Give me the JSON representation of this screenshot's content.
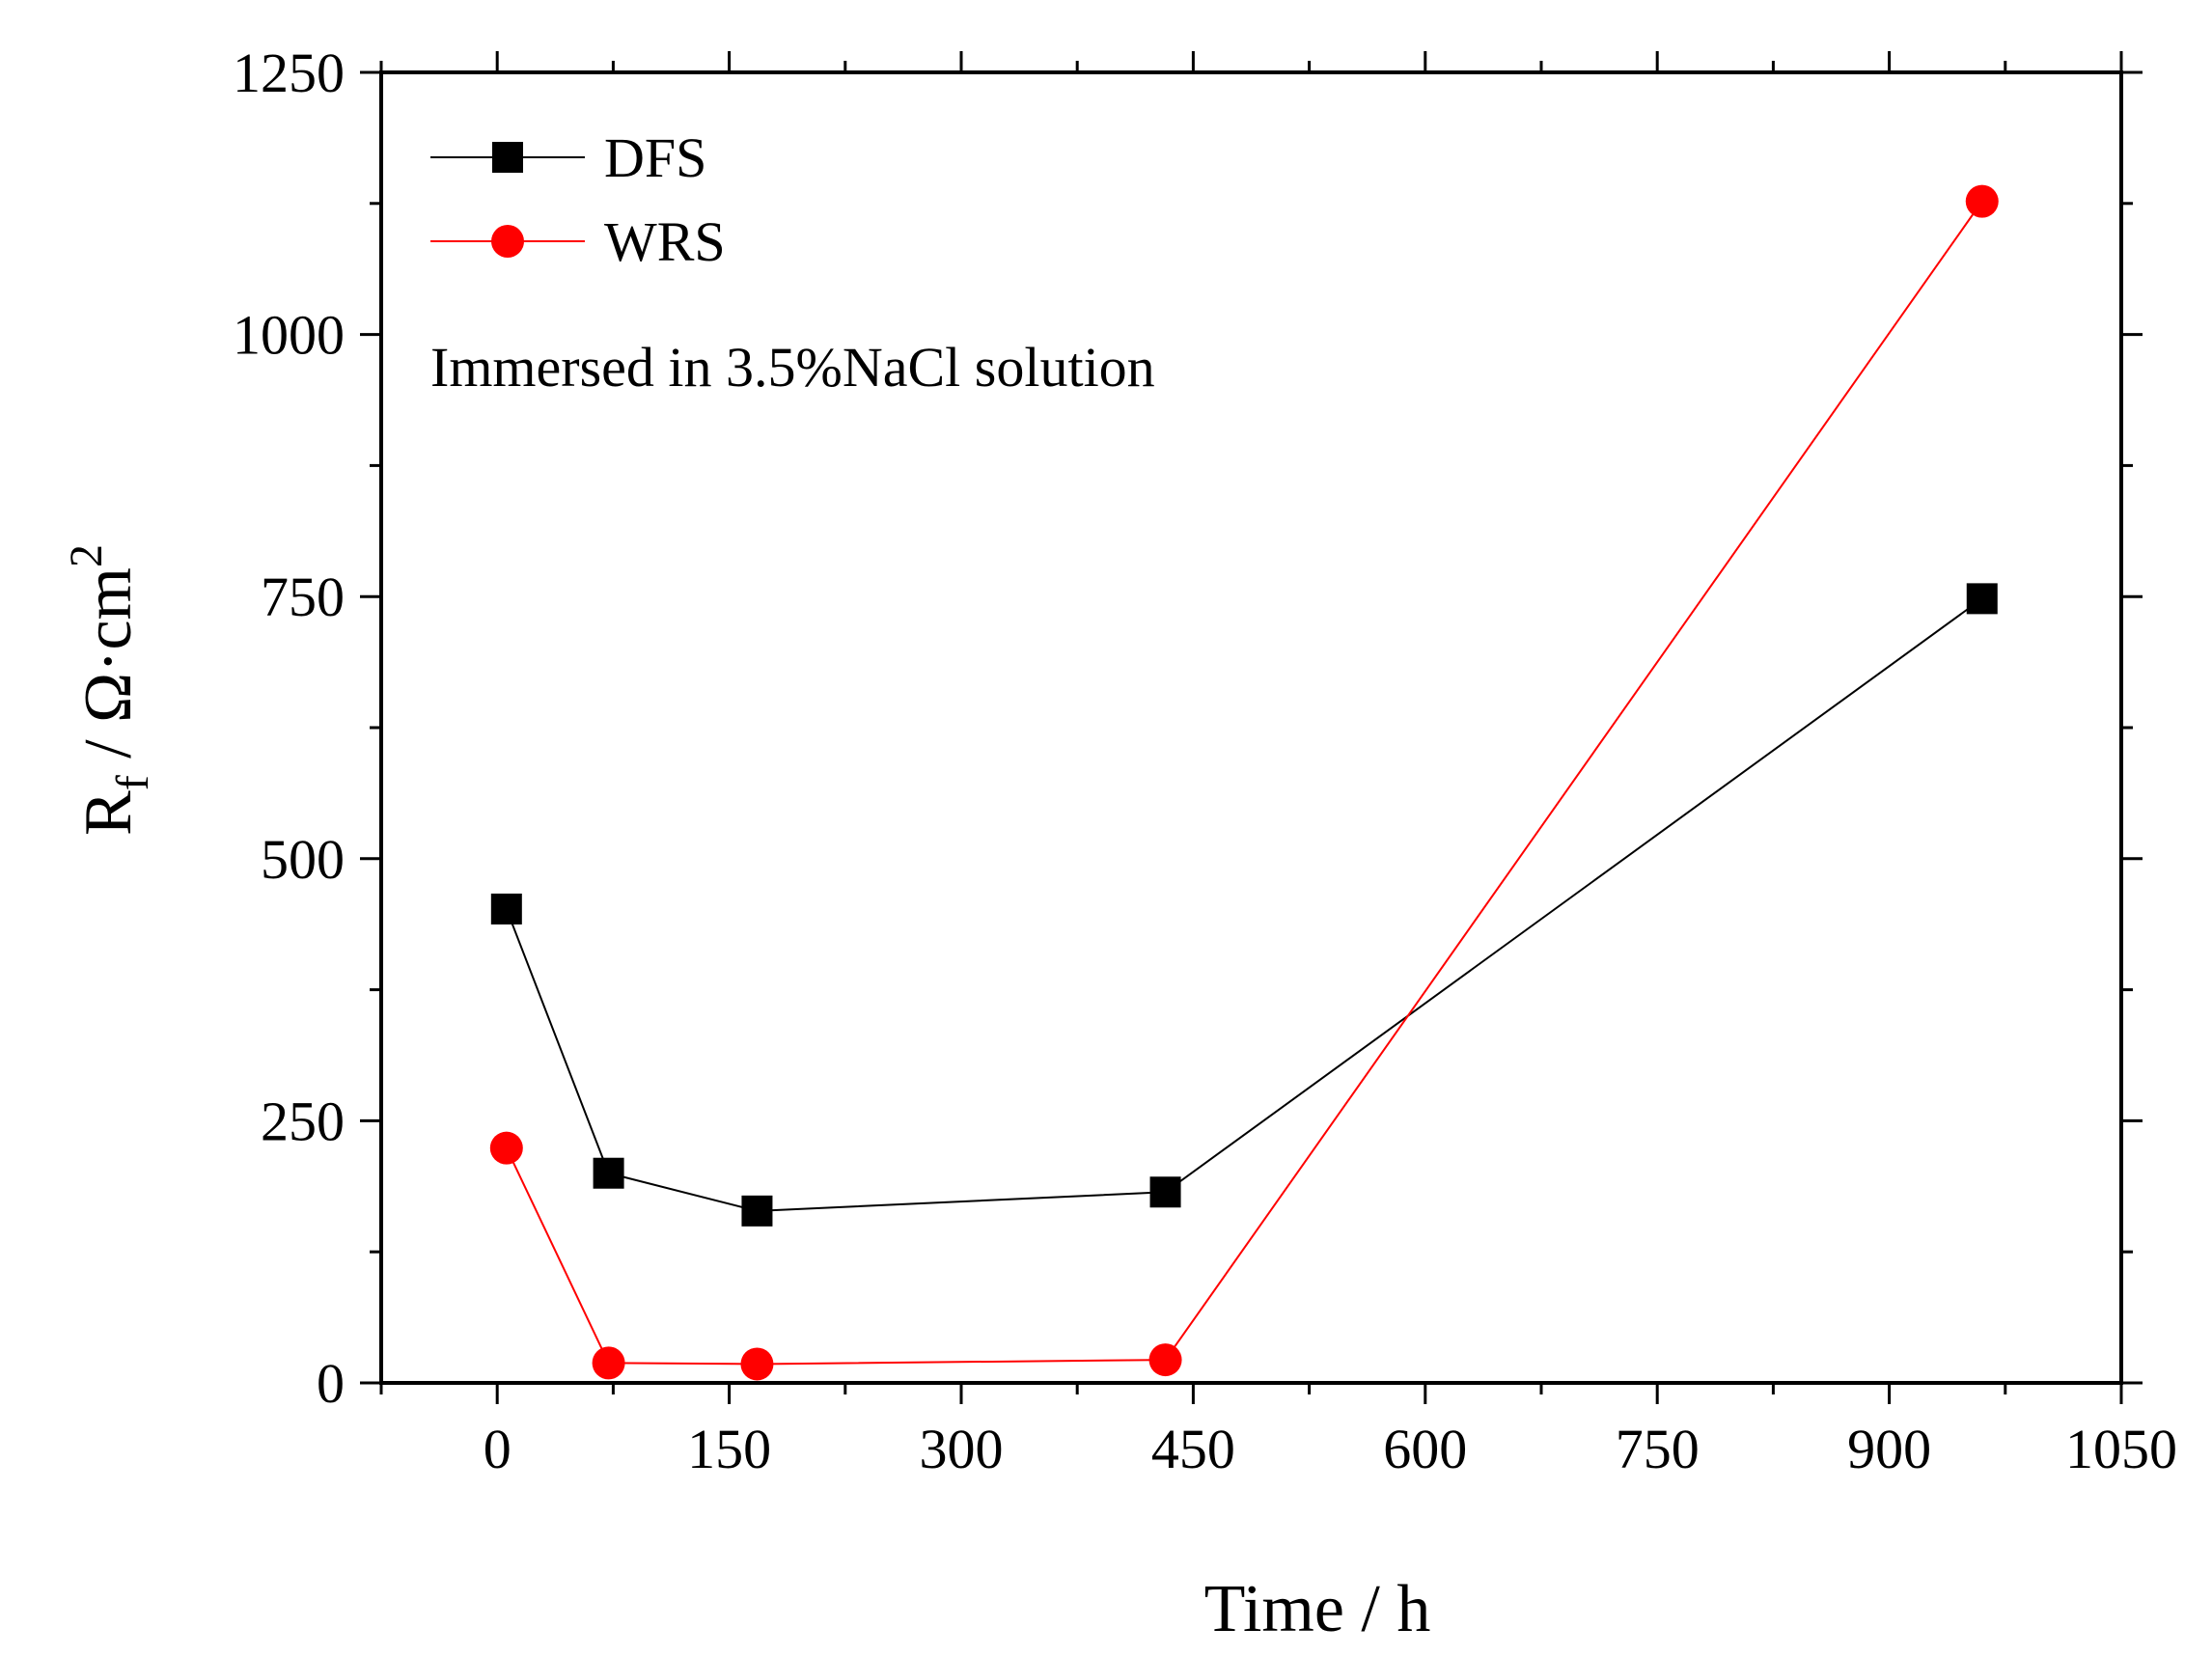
{
  "chart_data": {
    "type": "line",
    "title": "",
    "xlabel": "Time / h",
    "ylabel": {
      "base": "R",
      "subscript": "f",
      "rest": " / Ω·cm",
      "superscript": "2"
    },
    "xlim": [
      -75,
      1050
    ],
    "ylim": [
      0,
      1250
    ],
    "x_ticks": [
      0,
      150,
      300,
      450,
      600,
      750,
      900,
      1050
    ],
    "y_ticks": [
      0,
      250,
      500,
      750,
      1000,
      1250
    ],
    "x_minor_step": 75,
    "y_minor_step": 125,
    "legend_position": "top-left",
    "annotation": "Immersed in 3.5%NaCl solution",
    "series": [
      {
        "name": "DFS",
        "color": "#000000",
        "marker": "square",
        "x": [
          6,
          72,
          168,
          432,
          960
        ],
        "values": [
          452,
          200,
          164,
          182,
          748
        ]
      },
      {
        "name": "WRS",
        "color": "#ff0000",
        "marker": "circle",
        "x": [
          6,
          72,
          168,
          432,
          960
        ],
        "values": [
          224,
          19,
          18,
          22,
          1127
        ]
      }
    ]
  }
}
